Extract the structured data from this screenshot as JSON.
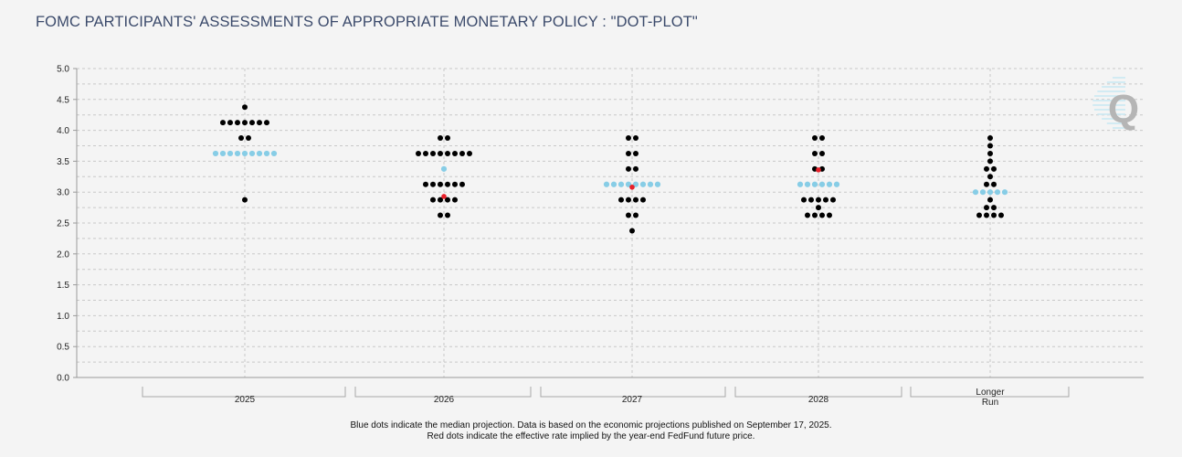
{
  "title": "FOMC PARTICIPANTS' ASSESSMENTS OF APPROPRIATE MONETARY POLICY : \"DOT-PLOT\"",
  "footnotes": [
    "Blue dots indicate the median projection. Data is based on the economic projections published on September 17, 2025.",
    "Red dots indicate the effective rate implied by the year-end FedFund future price."
  ],
  "colors": {
    "participant": "#000000",
    "median": "#87cde6",
    "implied": "#e8202a",
    "grid": "#c8c8c8",
    "axis": "#9a9a9a",
    "background": "#f4f4f4"
  },
  "watermark": {
    "letter": "Q"
  },
  "chart_data": {
    "type": "scatter",
    "ylim": [
      0,
      5
    ],
    "y_ticks": [
      "0.0",
      "0.5",
      "1.0",
      "1.5",
      "2.0",
      "2.5",
      "3.0",
      "3.5",
      "4.0",
      "4.5",
      "5.0"
    ],
    "categories": [
      {
        "label_lines": [
          "2025"
        ],
        "participants": [
          [
            4.375,
            1
          ],
          [
            4.125,
            7
          ],
          [
            3.875,
            2
          ],
          [
            3.625,
            9
          ],
          [
            2.875,
            1
          ]
        ],
        "median": 3.625,
        "median_count": 9,
        "implied": null
      },
      {
        "label_lines": [
          "2026"
        ],
        "participants": [
          [
            3.875,
            2
          ],
          [
            3.625,
            8
          ],
          [
            3.375,
            1
          ],
          [
            3.125,
            6
          ],
          [
            2.875,
            4
          ],
          [
            2.625,
            2
          ]
        ],
        "median": 3.375,
        "median_count": 1,
        "implied": 2.93
      },
      {
        "label_lines": [
          "2027"
        ],
        "participants": [
          [
            3.875,
            2
          ],
          [
            3.625,
            2
          ],
          [
            3.375,
            2
          ],
          [
            3.125,
            8
          ],
          [
            2.875,
            4
          ],
          [
            2.625,
            2
          ],
          [
            2.375,
            1
          ]
        ],
        "median": 3.125,
        "median_count": 8,
        "implied": 3.08
      },
      {
        "label_lines": [
          "2028"
        ],
        "participants": [
          [
            3.875,
            2
          ],
          [
            3.625,
            2
          ],
          [
            3.375,
            2
          ],
          [
            3.125,
            6
          ],
          [
            2.875,
            5
          ],
          [
            2.75,
            1
          ],
          [
            2.625,
            4
          ]
        ],
        "median": 3.125,
        "median_count": 6,
        "implied": 3.36
      },
      {
        "label_lines": [
          "Longer",
          "Run"
        ],
        "participants": [
          [
            3.875,
            1
          ],
          [
            3.75,
            1
          ],
          [
            3.625,
            1
          ],
          [
            3.5,
            1
          ],
          [
            3.375,
            2
          ],
          [
            3.25,
            1
          ],
          [
            3.125,
            2
          ],
          [
            3.0,
            5
          ],
          [
            2.875,
            1
          ],
          [
            2.75,
            2
          ],
          [
            2.625,
            4
          ]
        ],
        "median": 3.0,
        "median_count": 5,
        "implied": null
      }
    ]
  }
}
